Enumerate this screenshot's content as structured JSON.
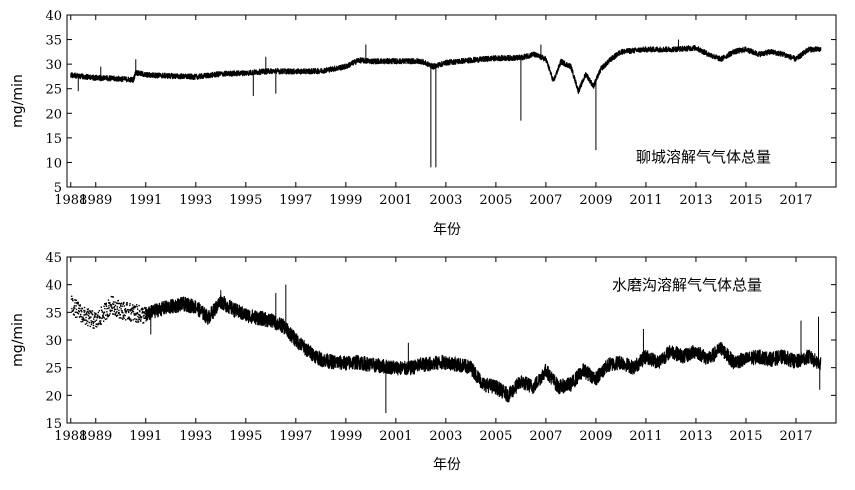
{
  "chart_data": [
    {
      "type": "line",
      "ylabel": "mg/min",
      "xlabel": "年份",
      "ylim": [
        5,
        40
      ],
      "xlim": [
        1987.85,
        2018.6
      ],
      "yticks": [
        5,
        10,
        15,
        20,
        25,
        30,
        35,
        40
      ],
      "xticks": [
        1988,
        1989,
        1991,
        1993,
        1995,
        1997,
        1999,
        2001,
        2003,
        2005,
        2007,
        2009,
        2011,
        2013,
        2015,
        2017
      ],
      "grid": false,
      "legend_position": "right",
      "series": [
        {
          "name": "聊城溶解气气体总量",
          "baseline": [
            [
              1988.0,
              27.8
            ],
            [
              1989.0,
              27.2
            ],
            [
              1990.0,
              27.0
            ],
            [
              1990.5,
              26.8
            ],
            [
              1990.6,
              28.3
            ],
            [
              1991.0,
              27.8
            ],
            [
              1992.0,
              27.6
            ],
            [
              1993.0,
              27.4
            ],
            [
              1994.0,
              28.0
            ],
            [
              1995.0,
              28.2
            ],
            [
              1996.0,
              28.6
            ],
            [
              1997.0,
              28.5
            ],
            [
              1998.0,
              28.6
            ],
            [
              1999.0,
              29.5
            ],
            [
              1999.5,
              30.8
            ],
            [
              2000.0,
              30.6
            ],
            [
              2001.0,
              30.6
            ],
            [
              2002.0,
              30.6
            ],
            [
              2002.5,
              29.5
            ],
            [
              2003.0,
              30.3
            ],
            [
              2004.0,
              30.8
            ],
            [
              2005.0,
              31.2
            ],
            [
              2006.0,
              31.3
            ],
            [
              2006.5,
              32.0
            ],
            [
              2007.0,
              31.0
            ],
            [
              2007.3,
              26.5
            ],
            [
              2007.6,
              30.5
            ],
            [
              2008.0,
              29.5
            ],
            [
              2008.3,
              24.5
            ],
            [
              2008.6,
              28.0
            ],
            [
              2008.9,
              25.5
            ],
            [
              2009.2,
              29.0
            ],
            [
              2009.6,
              31.0
            ],
            [
              2010.0,
              32.5
            ],
            [
              2011.0,
              33.0
            ],
            [
              2012.0,
              33.0
            ],
            [
              2013.0,
              33.3
            ],
            [
              2013.5,
              32.0
            ],
            [
              2014.0,
              31.0
            ],
            [
              2014.5,
              32.5
            ],
            [
              2015.0,
              33.0
            ],
            [
              2015.5,
              32.0
            ],
            [
              2016.0,
              32.5
            ],
            [
              2016.5,
              32.0
            ],
            [
              2017.0,
              31.0
            ],
            [
              2017.5,
              33.0
            ],
            [
              2018.0,
              33.0
            ]
          ],
          "spikes": [
            [
              1988.3,
              24.5
            ],
            [
              1989.2,
              29.5
            ],
            [
              1990.6,
              31.0
            ],
            [
              1995.3,
              23.5
            ],
            [
              1995.8,
              31.5
            ],
            [
              1996.2,
              24.0
            ],
            [
              1999.8,
              34.0
            ],
            [
              2002.4,
              9.0
            ],
            [
              2002.6,
              9.0
            ],
            [
              2006.0,
              18.5
            ],
            [
              2006.8,
              34.0
            ],
            [
              2009.0,
              12.5
            ],
            [
              2012.3,
              35.0
            ]
          ]
        }
      ]
    },
    {
      "type": "line",
      "ylabel": "mg/min",
      "xlabel": "年份",
      "ylim": [
        15,
        45
      ],
      "xlim": [
        1987.85,
        2018.6
      ],
      "yticks": [
        15,
        20,
        25,
        30,
        35,
        40,
        45
      ],
      "xticks": [
        1988,
        1989,
        1991,
        1993,
        1995,
        1997,
        1999,
        2001,
        2003,
        2005,
        2007,
        2009,
        2011,
        2013,
        2015,
        2017
      ],
      "grid": false,
      "legend_position": "top-right",
      "series": [
        {
          "name": "水磨沟溶解气气体总量",
          "scatter_segment": {
            "from": 1988.0,
            "to": 1991.0
          },
          "baseline": [
            [
              1988.0,
              36.5
            ],
            [
              1988.5,
              34.5
            ],
            [
              1989.0,
              33.5
            ],
            [
              1989.3,
              35.0
            ],
            [
              1989.6,
              36.5
            ],
            [
              1990.0,
              35.5
            ],
            [
              1990.5,
              35.0
            ],
            [
              1991.0,
              34.5
            ],
            [
              1991.5,
              35.5
            ],
            [
              1992.0,
              36.0
            ],
            [
              1992.5,
              36.5
            ],
            [
              1993.0,
              36.0
            ],
            [
              1993.5,
              34.0
            ],
            [
              1994.0,
              37.0
            ],
            [
              1994.5,
              35.5
            ],
            [
              1995.0,
              34.5
            ],
            [
              1995.5,
              34.0
            ],
            [
              1996.0,
              33.5
            ],
            [
              1996.5,
              32.5
            ],
            [
              1997.0,
              30.0
            ],
            [
              1997.5,
              28.0
            ],
            [
              1998.0,
              26.5
            ],
            [
              1998.5,
              26.0
            ],
            [
              1999.0,
              25.8
            ],
            [
              1999.5,
              26.0
            ],
            [
              2000.0,
              25.5
            ],
            [
              2001.0,
              25.0
            ],
            [
              2001.5,
              24.8
            ],
            [
              2002.0,
              25.5
            ],
            [
              2003.0,
              26.0
            ],
            [
              2003.5,
              25.5
            ],
            [
              2004.0,
              25.0
            ],
            [
              2004.5,
              22.0
            ],
            [
              2005.0,
              21.5
            ],
            [
              2005.5,
              20.0
            ],
            [
              2006.0,
              22.5
            ],
            [
              2006.5,
              21.5
            ],
            [
              2007.0,
              24.5
            ],
            [
              2007.5,
              21.5
            ],
            [
              2008.0,
              22.0
            ],
            [
              2008.5,
              24.5
            ],
            [
              2009.0,
              23.0
            ],
            [
              2009.5,
              25.5
            ],
            [
              2010.0,
              26.0
            ],
            [
              2010.5,
              25.0
            ],
            [
              2011.0,
              27.0
            ],
            [
              2011.5,
              26.0
            ],
            [
              2012.0,
              28.0
            ],
            [
              2012.5,
              27.0
            ],
            [
              2013.0,
              28.0
            ],
            [
              2013.5,
              26.5
            ],
            [
              2014.0,
              28.5
            ],
            [
              2014.5,
              26.0
            ],
            [
              2015.0,
              26.5
            ],
            [
              2015.5,
              27.0
            ],
            [
              2016.0,
              26.5
            ],
            [
              2016.5,
              27.0
            ],
            [
              2017.0,
              26.0
            ],
            [
              2017.5,
              27.0
            ],
            [
              2018.0,
              25.5
            ]
          ],
          "spikes": [
            [
              1991.2,
              31.0
            ],
            [
              1994.0,
              39.0
            ],
            [
              1996.2,
              38.5
            ],
            [
              1996.6,
              40.0
            ],
            [
              2000.6,
              16.8
            ],
            [
              2001.5,
              29.5
            ],
            [
              2010.9,
              32.0
            ],
            [
              2017.2,
              33.5
            ],
            [
              2017.9,
              34.2
            ],
            [
              2017.95,
              21.0
            ]
          ]
        }
      ]
    }
  ]
}
